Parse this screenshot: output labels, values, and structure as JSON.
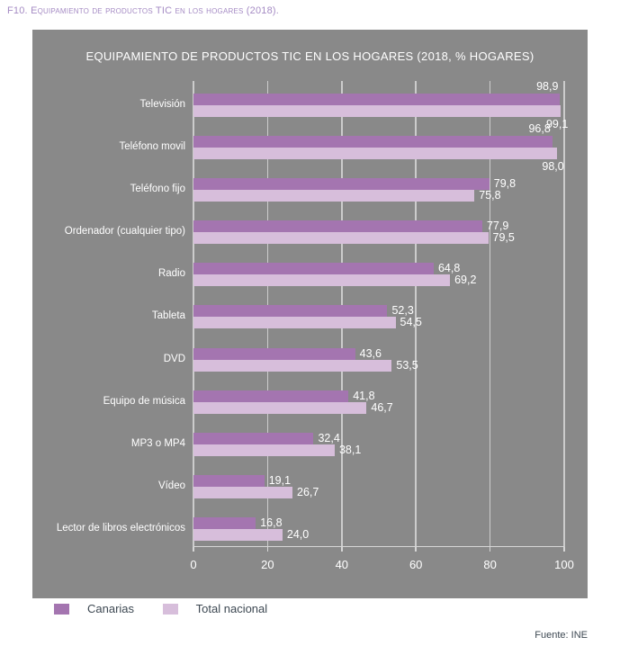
{
  "caption": "F10. Equipamiento de productos TIC en los hogares (2018).",
  "chart_data": {
    "type": "bar",
    "orientation": "horizontal",
    "title": "EQUIPAMIENTO DE PRODUCTOS TIC EN LOS HOGARES (2018, % HOGARES)",
    "categories": [
      "Televisión",
      "Teléfono movil",
      "Teléfono fijo",
      "Ordenador (cualquier tipo)",
      "Radio",
      "Tableta",
      "DVD",
      "Equipo de música",
      "MP3 o MP4",
      "Vídeo",
      "Lector de libros electrónicos"
    ],
    "series": [
      {
        "name": "Canarias",
        "color": "#a475b0",
        "values": [
          98.9,
          96.8,
          79.8,
          77.9,
          64.8,
          52.3,
          43.6,
          41.8,
          32.4,
          19.1,
          16.8
        ],
        "labels": [
          "98,9",
          "96,8",
          "79,8",
          "77,9",
          "64,8",
          "52,3",
          "43,6",
          "41,8",
          "32,4",
          "19,1",
          "16,8"
        ]
      },
      {
        "name": "Total nacional",
        "color": "#d7bedb",
        "values": [
          99.1,
          98.0,
          75.8,
          79.5,
          69.2,
          54.5,
          53.5,
          46.7,
          38.1,
          26.7,
          24.0
        ],
        "labels": [
          "99,1",
          "98,0",
          "75,8",
          "79,5",
          "69,2",
          "54,5",
          "53,5",
          "46,7",
          "38,1",
          "26,7",
          "24,0"
        ]
      }
    ],
    "xlim": [
      0,
      100
    ],
    "xticks": [
      0,
      20,
      40,
      60,
      80,
      100
    ],
    "grid": true,
    "legend_position": "bottom-left"
  },
  "legend": [
    {
      "label": "Canarias",
      "color": "#a475b0"
    },
    {
      "label": "Total nacional",
      "color": "#d7bedb"
    }
  ],
  "source": "Fuente: INE",
  "colors": {
    "panel_background": "#898989",
    "series_canarias": "#a475b0",
    "series_total_nacional": "#d7bedb",
    "gridline": "#cccccc",
    "text_on_panel": "#ffffff",
    "caption_text": "#a58bc4",
    "legend_text": "#3d4852"
  }
}
